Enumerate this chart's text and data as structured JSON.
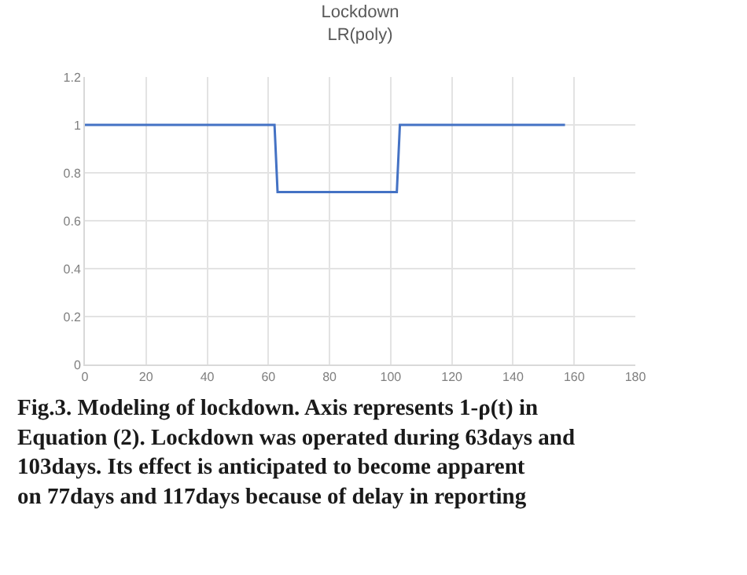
{
  "chart_data": {
    "type": "line",
    "title": "Lockdown",
    "subtitle": "LR(poly)",
    "x": [
      0,
      62,
      63,
      102,
      103,
      157
    ],
    "series": [
      {
        "color": "#4472c4",
        "values": [
          1,
          1,
          0.72,
          0.72,
          1,
          1
        ]
      }
    ],
    "xlim": [
      0,
      180
    ],
    "xticks": [
      0,
      20,
      40,
      60,
      80,
      100,
      120,
      140,
      160,
      180
    ],
    "ylim": [
      0,
      1.2
    ],
    "yticks": [
      0,
      0.2,
      0.4,
      0.6,
      0.8,
      1,
      1.2
    ],
    "grid": true,
    "marker": "none",
    "line_style": "solid",
    "annotations": [
      "Fig.3. Modeling of lockdown. Axis represents 1-ρ(t) in Equation (2). Lockdown was operated during 63days and 103days. Its effect is anticipated to become apparent on 77days and 117days because of delay in reporting"
    ]
  }
}
